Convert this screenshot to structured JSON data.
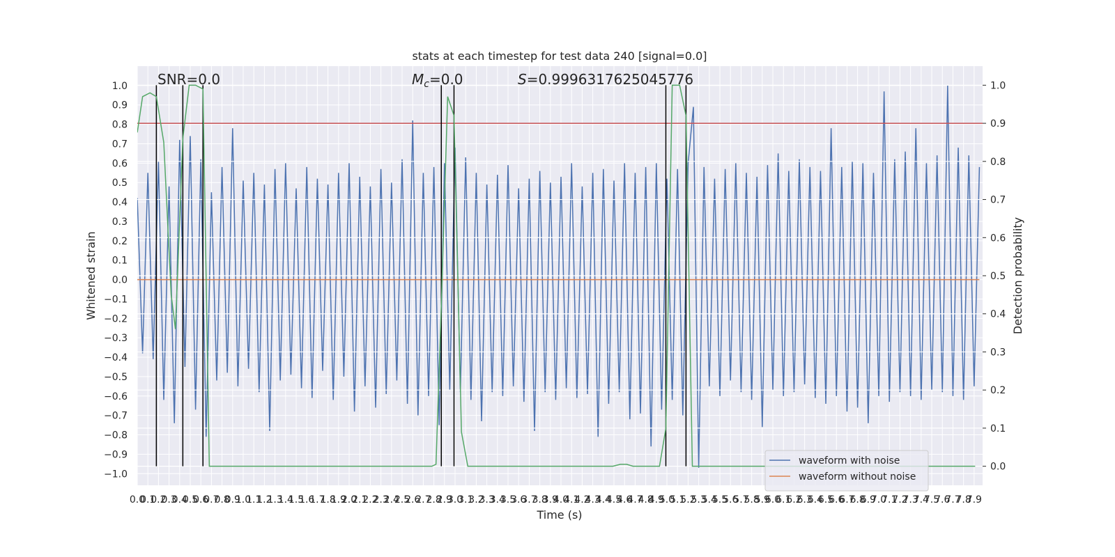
{
  "chart_data": {
    "type": "line",
    "title": "stats at each timestep for test data 240 [signal=0.0]",
    "xlabel": "Time (s)",
    "ylabel": "Whitened strain",
    "y2label": "Detection probability",
    "xlim": [
      0,
      7.98
    ],
    "ylim": [
      -1.06,
      1.1
    ],
    "y2lim": [
      -0.05,
      1.05
    ],
    "xticks": [
      {
        "value": 0,
        "label": "0.0"
      },
      0.1,
      0.2,
      0.3,
      0.4,
      0.5,
      0.6,
      0.7,
      0.8,
      0.9,
      {
        "value": 1,
        "label": "1.0"
      },
      1.1,
      1.2,
      1.3,
      1.4,
      1.5,
      1.6,
      1.7,
      1.8,
      1.9,
      {
        "value": 2,
        "label": "2.0"
      },
      2.1,
      2.2,
      2.3,
      2.4,
      2.5,
      2.6,
      2.7,
      2.8,
      2.9,
      {
        "value": 3,
        "label": "3.0"
      },
      3.1,
      3.2,
      3.3,
      3.4,
      3.5,
      3.6,
      3.7,
      3.8,
      3.9,
      {
        "value": 4,
        "label": "4.0"
      },
      4.1,
      4.2,
      4.3,
      4.4,
      4.5,
      4.6,
      4.7,
      4.8,
      4.9,
      {
        "value": 5,
        "label": "5.0"
      },
      5.1,
      5.2,
      5.3,
      5.4,
      5.5,
      5.6,
      5.7,
      5.8,
      5.9,
      {
        "value": 6,
        "label": "6.0"
      },
      6.1,
      6.2,
      6.3,
      6.4,
      6.5,
      6.6,
      6.7,
      6.8,
      6.9,
      {
        "value": 7,
        "label": "7.0"
      },
      7.1,
      7.2,
      7.3,
      7.4,
      7.5,
      7.6,
      7.7,
      7.8,
      7.9
    ],
    "yticks": [
      {
        "value": -1,
        "label": "−1.0"
      },
      {
        "value": -0.9,
        "label": "−0.9"
      },
      {
        "value": -0.8,
        "label": "−0.8"
      },
      {
        "value": -0.7,
        "label": "−0.7"
      },
      {
        "value": -0.6,
        "label": "−0.6"
      },
      {
        "value": -0.5,
        "label": "−0.5"
      },
      {
        "value": -0.4,
        "label": "−0.4"
      },
      {
        "value": -0.3,
        "label": "−0.3"
      },
      {
        "value": -0.2,
        "label": "−0.2"
      },
      {
        "value": -0.1,
        "label": "−0.1"
      },
      {
        "value": 0,
        "label": "0.0"
      },
      0.1,
      0.2,
      0.3,
      0.4,
      0.5,
      0.6,
      0.7,
      0.8,
      0.9,
      {
        "value": 1,
        "label": "1.0"
      }
    ],
    "y2ticks": [
      {
        "value": 0,
        "label": "0.0"
      },
      0.1,
      0.2,
      0.3,
      0.4,
      0.5,
      0.6,
      0.7,
      0.8,
      0.9,
      {
        "value": 1,
        "label": "1.0"
      }
    ],
    "grid": true,
    "legend": "lower right",
    "annotations": [
      {
        "text": "SNR=0.0"
      },
      {
        "italic": "M",
        "sub": "c",
        "text": "=0.0"
      },
      {
        "italic": "S",
        "text": "=0.9996317625045776"
      }
    ],
    "series": [
      {
        "name": "waveform with noise",
        "color": "#4c72b0",
        "x": [
          0,
          0.05,
          0.1,
          0.15,
          0.2,
          0.25,
          0.3,
          0.35,
          0.4,
          0.45,
          0.5,
          0.55,
          0.6,
          0.65,
          0.7,
          0.75,
          0.8,
          0.85,
          0.9,
          0.95,
          1,
          1.05,
          1.1,
          1.15,
          1.2,
          1.25,
          1.3,
          1.35,
          1.4,
          1.45,
          1.5,
          1.55,
          1.6,
          1.65,
          1.7,
          1.75,
          1.8,
          1.85,
          1.9,
          1.95,
          2,
          2.05,
          2.1,
          2.15,
          2.2,
          2.25,
          2.3,
          2.35,
          2.4,
          2.45,
          2.5,
          2.55,
          2.6,
          2.65,
          2.7,
          2.75,
          2.8,
          2.85,
          2.9,
          2.95,
          3,
          3.05,
          3.1,
          3.15,
          3.2,
          3.25,
          3.3,
          3.35,
          3.4,
          3.45,
          3.5,
          3.55,
          3.6,
          3.65,
          3.7,
          3.75,
          3.8,
          3.85,
          3.9,
          3.95,
          4,
          4.05,
          4.1,
          4.15,
          4.2,
          4.25,
          4.3,
          4.35,
          4.4,
          4.45,
          4.5,
          4.55,
          4.6,
          4.65,
          4.7,
          4.75,
          4.8,
          4.85,
          4.9,
          4.95,
          5,
          5.05,
          5.1,
          5.15,
          5.2,
          5.25,
          5.3,
          5.35,
          5.4,
          5.45,
          5.5,
          5.55,
          5.6,
          5.65,
          5.7,
          5.75,
          5.8,
          5.85,
          5.9,
          5.95,
          6,
          6.05,
          6.1,
          6.15,
          6.2,
          6.25,
          6.3,
          6.35,
          6.4,
          6.45,
          6.5,
          6.55,
          6.6,
          6.65,
          6.7,
          6.75,
          6.8,
          6.85,
          6.9,
          6.95,
          7,
          7.05,
          7.1,
          7.15,
          7.2,
          7.25,
          7.3,
          7.35,
          7.4,
          7.45,
          7.5,
          7.55,
          7.6,
          7.65,
          7.7,
          7.75,
          7.8,
          7.85,
          7.9,
          7.95
        ],
        "values": [
          0.42,
          -0.38,
          0.55,
          -0.41,
          0.61,
          -0.62,
          0.48,
          -0.74,
          0.72,
          -0.45,
          0.74,
          -0.67,
          0.62,
          -0.81,
          0.45,
          -0.52,
          0.58,
          -0.48,
          0.78,
          -0.55,
          0.51,
          -0.46,
          0.55,
          -0.58,
          0.49,
          -0.78,
          0.57,
          -0.52,
          0.6,
          -0.49,
          0.47,
          -0.56,
          0.58,
          -0.61,
          0.52,
          -0.47,
          0.49,
          -0.62,
          0.55,
          -0.5,
          0.6,
          -0.68,
          0.53,
          -0.55,
          0.48,
          -0.66,
          0.57,
          -0.59,
          0.5,
          -0.52,
          0.62,
          -0.64,
          0.82,
          -0.7,
          0.55,
          -0.6,
          0.58,
          -0.75,
          0.6,
          -0.57,
          0.68,
          -0.58,
          0.63,
          -0.62,
          0.55,
          -0.73,
          0.49,
          -0.58,
          0.54,
          -0.6,
          0.59,
          -0.55,
          0.47,
          -0.63,
          0.52,
          -0.78,
          0.56,
          -0.58,
          0.5,
          -0.62,
          0.53,
          -0.56,
          0.6,
          -0.61,
          0.48,
          -0.59,
          0.55,
          -0.81,
          0.57,
          -0.64,
          0.51,
          -0.58,
          0.6,
          -0.72,
          0.55,
          -0.69,
          0.58,
          -0.86,
          0.6,
          -0.67,
          0.52,
          -0.62,
          0.57,
          -0.7,
          0.6,
          0.89,
          -0.97,
          0.58,
          -0.55,
          0.52,
          -0.6,
          0.57,
          -0.52,
          0.6,
          -0.58,
          0.55,
          -0.62,
          0.53,
          -0.76,
          0.59,
          -0.57,
          0.65,
          -0.6,
          0.56,
          -0.58,
          0.62,
          -0.54,
          0.58,
          -0.61,
          0.56,
          -0.64,
          0.78,
          -0.6,
          0.58,
          -0.68,
          0.61,
          -0.66,
          0.6,
          -0.74,
          0.55,
          -0.6,
          0.97,
          -0.63,
          0.62,
          -0.58,
          0.66,
          -0.6,
          0.78,
          -0.62,
          0.6,
          -0.57,
          0.64,
          -0.58,
          1.0,
          -0.6,
          0.68,
          -0.62,
          0.64,
          -0.55,
          0.58
        ]
      },
      {
        "name": "waveform without noise",
        "color": "#dd8452",
        "x": [
          0,
          7.95
        ],
        "values": [
          0,
          0
        ]
      },
      {
        "color": "#55a868",
        "axis": "y2",
        "x": [
          0,
          0.05,
          0.12,
          0.18,
          0.25,
          0.32,
          0.36,
          0.43,
          0.49,
          0.55,
          0.62,
          0.68,
          0.74,
          2.78,
          2.82,
          2.87,
          2.93,
          2.99,
          3.06,
          3.12,
          4.49,
          4.56,
          4.62,
          4.68,
          4.93,
          4.99,
          5.05,
          5.12,
          5.18,
          5.24,
          7.91
        ],
        "values": [
          0.876,
          0.97,
          0.98,
          0.97,
          0.85,
          0.45,
          0.36,
          0.86,
          1.0,
          1.0,
          0.99,
          0.0,
          0,
          0,
          0.005,
          0.42,
          0.97,
          0.92,
          0.09,
          0,
          0,
          0.005,
          0.005,
          0,
          0,
          0.1,
          1.0,
          1.0,
          0.92,
          0,
          0
        ]
      }
    ],
    "hlines": [
      {
        "value": 0.9,
        "axis": "y2",
        "color": "#c44e52"
      }
    ],
    "vlines": {
      "x": [
        0.18,
        0.43,
        0.62,
        2.87,
        2.99,
        4.99,
        5.18
      ],
      "ymin": 0,
      "ymax": 1,
      "axis": "y2",
      "color": "#000000"
    }
  }
}
